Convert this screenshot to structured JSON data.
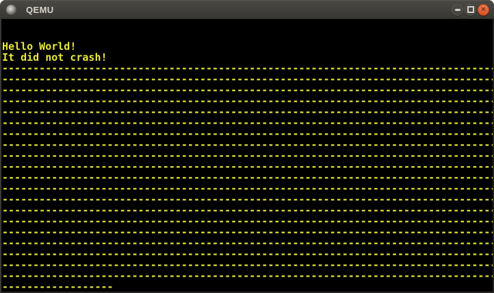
{
  "window": {
    "title": "QEMU",
    "icon": "window-orb-icon",
    "controls": [
      {
        "name": "minimize",
        "glyph": ""
      },
      {
        "name": "maximize",
        "glyph": ""
      },
      {
        "name": "close",
        "glyph": "✕"
      }
    ]
  },
  "console": {
    "cols": 80,
    "rows": 25,
    "text_color": "#e8e83f",
    "background": "#000000",
    "lines": [
      "",
      "",
      "Hello World!",
      "It did not crash!",
      "--------------------------------------------------------------------------------",
      "--------------------------------------------------------------------------------",
      "--------------------------------------------------------------------------------",
      "--------------------------------------------------------------------------------",
      "--------------------------------------------------------------------------------",
      "--------------------------------------------------------------------------------",
      "--------------------------------------------------------------------------------",
      "--------------------------------------------------------------------------------",
      "--------------------------------------------------------------------------------",
      "--------------------------------------------------------------------------------",
      "--------------------------------------------------------------------------------",
      "--------------------------------------------------------------------------------",
      "--------------------------------------------------------------------------------",
      "--------------------------------------------------------------------------------",
      "--------------------------------------------------------------------------------",
      "--------------------------------------------------------------------------------",
      "--------------------------------------------------------------------------------",
      "--------------------------------------------------------------------------------",
      "--------------------------------------------------------------------------------",
      "--------------------------------------------------------------------------------",
      "------------------"
    ]
  },
  "theme": {
    "titlebar_top": "#4c4a45",
    "titlebar_bottom": "#393733",
    "title_text": "#d9d5cc",
    "close_button_orange": "#d9511f",
    "button_gray": "#454440",
    "console_yellow": "#e8e83f",
    "console_black": "#000000"
  }
}
